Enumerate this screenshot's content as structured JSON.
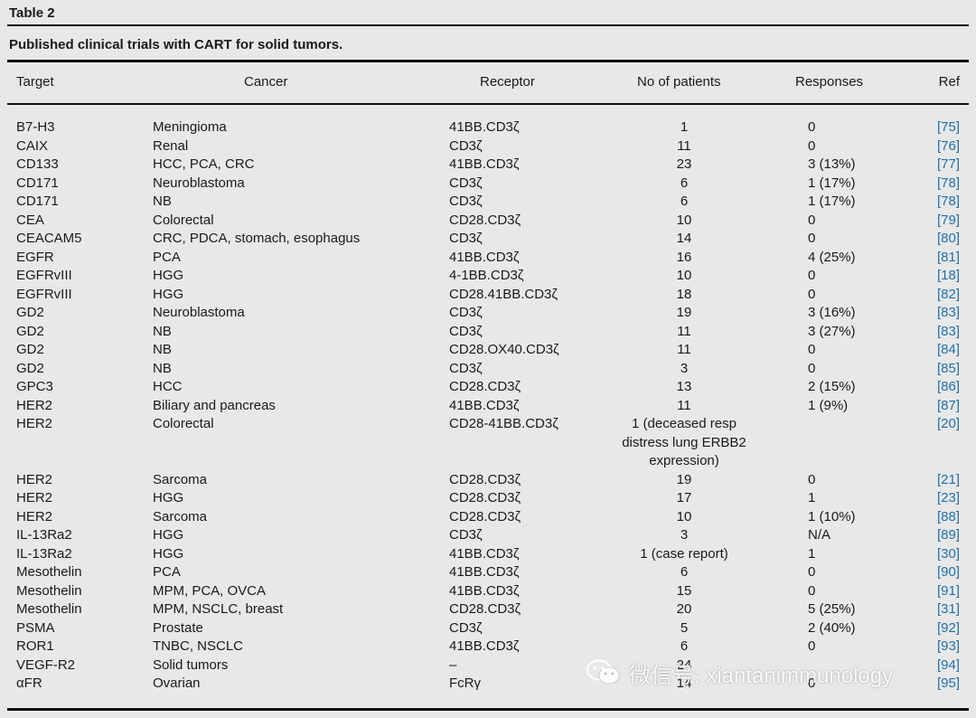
{
  "table_label": "Table 2",
  "caption": "Published clinical trials with CART for solid tumors.",
  "columns": {
    "target": "Target",
    "cancer": "Cancer",
    "receptor": "Receptor",
    "patients": "No of patients",
    "responses": "Responses",
    "ref": "Ref"
  },
  "rows": [
    {
      "target": "B7-H3",
      "cancer": "Meningioma",
      "receptor": "41BB.CD3ζ",
      "patients": "1",
      "responses": "0",
      "ref": "[75]"
    },
    {
      "target": "CAIX",
      "cancer": "Renal",
      "receptor": "CD3ζ",
      "patients": "11",
      "responses": "0",
      "ref": "[76]"
    },
    {
      "target": "CD133",
      "cancer": "HCC, PCA, CRC",
      "receptor": "41BB.CD3ζ",
      "patients": "23",
      "responses": "3 (13%)",
      "ref": "[77]"
    },
    {
      "target": "CD171",
      "cancer": "Neuroblastoma",
      "receptor": "CD3ζ",
      "patients": "6",
      "responses": "1 (17%)",
      "ref": "[78]"
    },
    {
      "target": "CD171",
      "cancer": "NB",
      "receptor": "CD3ζ",
      "patients": "6",
      "responses": "1 (17%)",
      "ref": "[78]"
    },
    {
      "target": "CEA",
      "cancer": "Colorectal",
      "receptor": "CD28.CD3ζ",
      "patients": "10",
      "responses": "0",
      "ref": "[79]"
    },
    {
      "target": "CEACAM5",
      "cancer": "CRC, PDCA, stomach, esophagus",
      "receptor": "CD3ζ",
      "patients": "14",
      "responses": "0",
      "ref": "[80]"
    },
    {
      "target": "EGFR",
      "cancer": "PCA",
      "receptor": "41BB.CD3ζ",
      "patients": "16",
      "responses": "4 (25%)",
      "ref": "[81]"
    },
    {
      "target": "EGFRvIII",
      "cancer": "HGG",
      "receptor": "4-1BB.CD3ζ",
      "patients": "10",
      "responses": "0",
      "ref": "[18]"
    },
    {
      "target": "EGFRvIII",
      "cancer": "HGG",
      "receptor": "CD28.41BB.CD3ζ",
      "patients": "18",
      "responses": "0",
      "ref": "[82]"
    },
    {
      "target": "GD2",
      "cancer": "Neuroblastoma",
      "receptor": "CD3ζ",
      "patients": "19",
      "responses": "3 (16%)",
      "ref": "[83]"
    },
    {
      "target": "GD2",
      "cancer": "NB",
      "receptor": "CD3ζ",
      "patients": "11",
      "responses": "3 (27%)",
      "ref": "[83]"
    },
    {
      "target": "GD2",
      "cancer": "NB",
      "receptor": "CD28.OX40.CD3ζ",
      "patients": "11",
      "responses": "0",
      "ref": "[84]"
    },
    {
      "target": "GD2",
      "cancer": "NB",
      "receptor": "CD3ζ",
      "patients": "3",
      "responses": "0",
      "ref": "[85]"
    },
    {
      "target": "GPC3",
      "cancer": "HCC",
      "receptor": "CD28.CD3ζ",
      "patients": "13",
      "responses": "2 (15%)",
      "ref": "[86]"
    },
    {
      "target": "HER2",
      "cancer": "Biliary and pancreas",
      "receptor": "41BB.CD3ζ",
      "patients": "11",
      "responses": "1 (9%)",
      "ref": "[87]"
    },
    {
      "target": "HER2",
      "cancer": "Colorectal",
      "receptor": "CD28-41BB.CD3ζ",
      "patients": "1 (deceased resp distress lung ERBB2 expression)",
      "responses": "",
      "ref": "[20]",
      "tall": true
    },
    {
      "target": "HER2",
      "cancer": "Sarcoma",
      "receptor": "CD28.CD3ζ",
      "patients": "19",
      "responses": "0",
      "ref": "[21]"
    },
    {
      "target": "HER2",
      "cancer": "HGG",
      "receptor": "CD28.CD3ζ",
      "patients": "17",
      "responses": "1",
      "ref": "[23]"
    },
    {
      "target": "HER2",
      "cancer": "Sarcoma",
      "receptor": "CD28.CD3ζ",
      "patients": "10",
      "responses": "1 (10%)",
      "ref": "[88]"
    },
    {
      "target": "IL-13Ra2",
      "cancer": "HGG",
      "receptor": "CD3ζ",
      "patients": "3",
      "responses": "N/A",
      "ref": "[89]"
    },
    {
      "target": "IL-13Ra2",
      "cancer": "HGG",
      "receptor": "41BB.CD3ζ",
      "patients": "1 (case report)",
      "responses": "1",
      "ref": "[30]"
    },
    {
      "target": "Mesothelin",
      "cancer": "PCA",
      "receptor": "41BB.CD3ζ",
      "patients": "6",
      "responses": "0",
      "ref": "[90]"
    },
    {
      "target": "Mesothelin",
      "cancer": "MPM, PCA, OVCA",
      "receptor": "41BB.CD3ζ",
      "patients": "15",
      "responses": "0",
      "ref": "[91]"
    },
    {
      "target": "Mesothelin",
      "cancer": "MPM, NSCLC, breast",
      "receptor": "CD28.CD3ζ",
      "patients": "20",
      "responses": "5 (25%)",
      "ref": "[31]"
    },
    {
      "target": "PSMA",
      "cancer": "Prostate",
      "receptor": "CD3ζ",
      "patients": "5",
      "responses": "2 (40%)",
      "ref": "[92]"
    },
    {
      "target": "ROR1",
      "cancer": "TNBC, NSCLC",
      "receptor": "41BB.CD3ζ",
      "patients": "6",
      "responses": "0",
      "ref": "[93]"
    },
    {
      "target": "VEGF-R2",
      "cancer": "Solid tumors",
      "receptor": "–",
      "patients": "24",
      "responses": "",
      "ref": "[94]"
    },
    {
      "target": "αFR",
      "cancer": "Ovarian",
      "receptor": "FcRγ",
      "patients": "14",
      "responses": "0",
      "ref": "[95]"
    }
  ],
  "watermark": "微信号: xiantanimmunology",
  "icons": {
    "watermark": "wechat-icon"
  }
}
